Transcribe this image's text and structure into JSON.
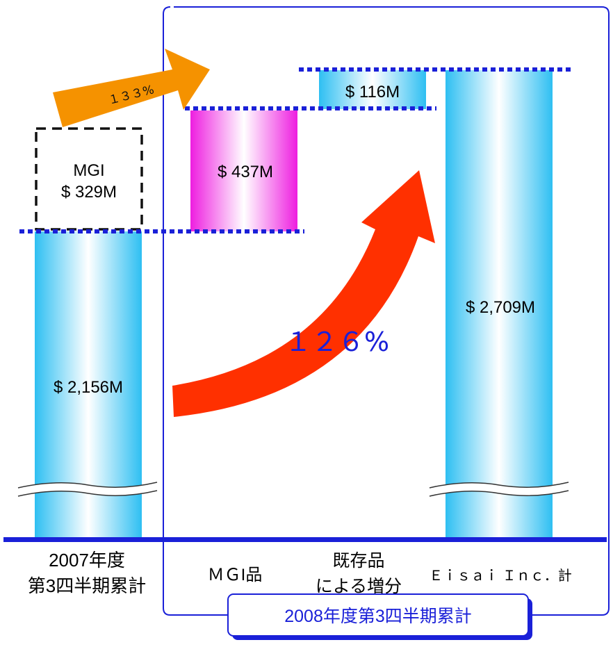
{
  "chart_data": {
    "type": "bar",
    "subtype": "waterfall",
    "categories": [
      "2007年度\n第3四半期累計",
      "MGI品",
      "既存品\nによる増分",
      "Eisai Inc.計"
    ],
    "bars": [
      {
        "category": "2007年度 第3四半期累計",
        "base": 0,
        "value": 2156,
        "label": "$ 2,156M",
        "style": "cyan-gradient"
      },
      {
        "category": "2007年度 第3四半期累計",
        "base": 2156,
        "value": 329,
        "label": "MGI\n$ 329M",
        "style": "dashed-outline"
      },
      {
        "category": "MGI品",
        "base": 2156,
        "value": 437,
        "label": "$ 437M",
        "style": "magenta-gradient"
      },
      {
        "category": "既存品による増分",
        "base": 2593,
        "value": 116,
        "label": "$ 116M",
        "style": "cyan-gradient"
      },
      {
        "category": "Eisai Inc.計",
        "base": 0,
        "value": 2709,
        "label": "$ 2,709M",
        "style": "cyan-gradient"
      }
    ],
    "annotations": {
      "growth_mgi": "１３３%",
      "growth_total": "１２６%"
    },
    "group_label": "2008年度第3四半期累計",
    "axis_break": true,
    "units": "$M",
    "colors": {
      "baseline": "#1a20d8",
      "dotted_line": "#1a20d8",
      "cyan_edge": "#33c3f3",
      "magenta_edge": "#f020e0",
      "orange_arrow": "#f59200",
      "red_arrow": "#ff3000",
      "frame": "#1a20d8",
      "pct_text": "#1a20d8"
    }
  },
  "labels": {
    "cat_2007_line1": "2007年度",
    "cat_2007_line2": "第3四半期累計",
    "cat_mgi": "ＭＧI品",
    "cat_existing_line1": "既存品",
    "cat_existing_line2": "による増分",
    "cat_eisai": "Ｅｉｓａｉ Ｉｎｃ．計",
    "bar_2007": "$ 2,156M",
    "mgi_line1": "MGI",
    "mgi_line2": "$ 329M",
    "bar_mgi": "$ 437M",
    "bar_existing": "$ 116M",
    "bar_eisai": "$ 2,709M",
    "pct_133": "１３３%",
    "pct_126": "１２６%",
    "group_label": "2008年度第3四半期累計"
  }
}
